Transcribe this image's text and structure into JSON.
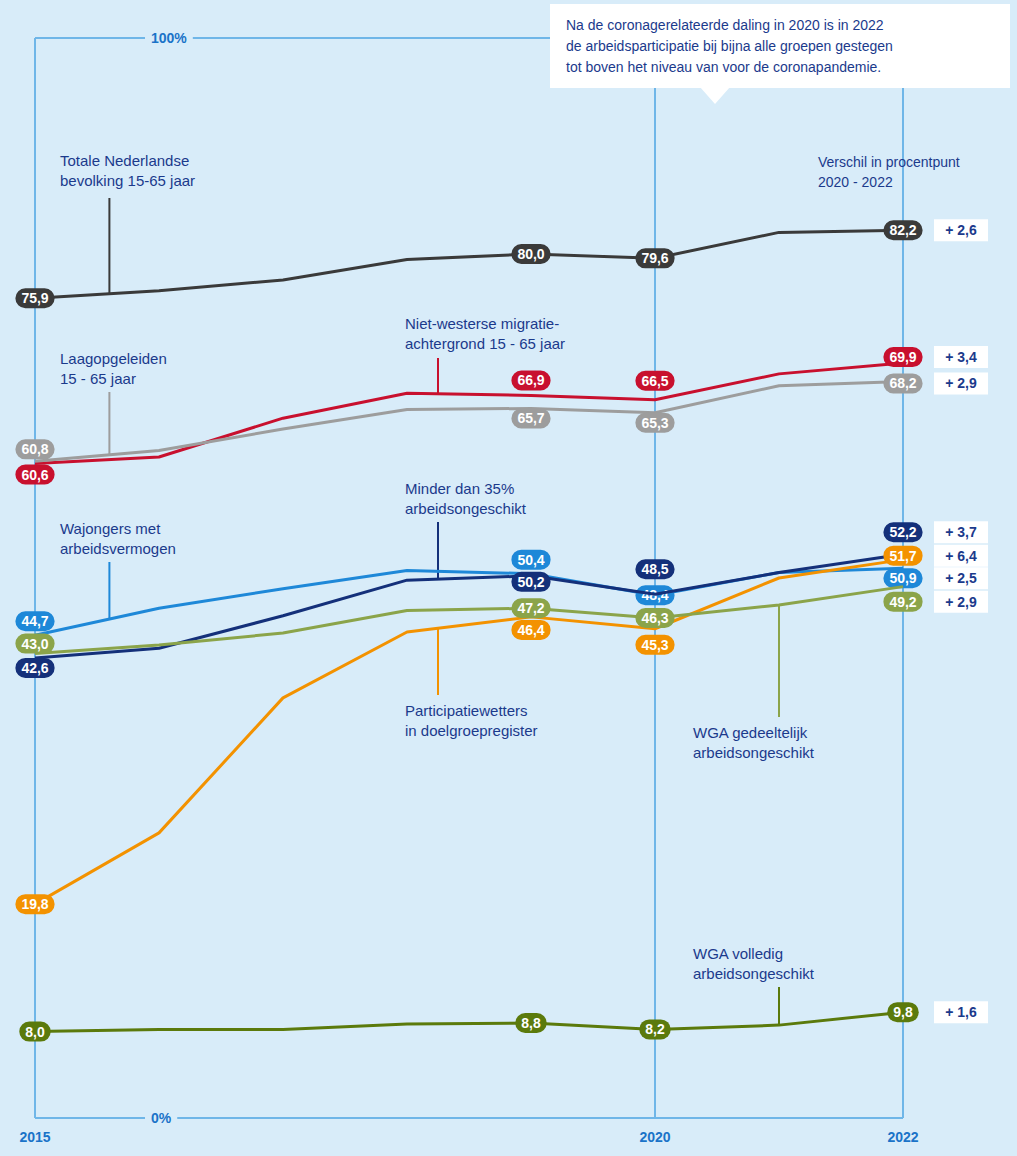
{
  "chart_data": {
    "type": "line",
    "annotation": "Na de coronagerelateerde daling in 2020 is in 2022\nde arbeidsparticipatie bij bijna alle groepen gestegen\ntot boven het niveau van voor de coronapandemie.",
    "change_title": "Verschil in procentpunt\n2020 - 2022",
    "categories": [
      "2015",
      null,
      null,
      null,
      null,
      "2020",
      null,
      "2022"
    ],
    "ylim": [
      0,
      100
    ],
    "yticks": [
      {
        "value": 0,
        "label": "0%"
      },
      {
        "value": 100,
        "label": "100%"
      }
    ],
    "grid": true,
    "data_labels": true,
    "series": [
      {
        "name": "Totale Nederlandse\nbevolking 15-65 jaar",
        "color": "#3a3a3a",
        "values": [
          75.9,
          76.6,
          77.6,
          79.5,
          80.0,
          79.6,
          82.0,
          82.2
        ],
        "value_labels": [
          "75,9",
          null,
          null,
          null,
          "80,0",
          "79,6",
          null,
          "82,2"
        ],
        "change_label": "+ 2,6"
      },
      {
        "name": "Niet-westerse migratie-\nachtergrond 15 - 65 jaar",
        "color": "#c8102e",
        "values": [
          60.6,
          61.2,
          64.8,
          67.1,
          66.9,
          66.5,
          68.9,
          69.9
        ],
        "value_labels": [
          "60,6",
          null,
          null,
          null,
          "66,9",
          "66,5",
          null,
          "69,9"
        ],
        "change_label": "+ 3,4"
      },
      {
        "name": "Laagopgeleiden\n15 - 65 jaar",
        "color": "#9d9d9d",
        "values": [
          60.8,
          61.8,
          63.8,
          65.6,
          65.7,
          65.3,
          67.8,
          68.2
        ],
        "value_labels": [
          "60,8",
          null,
          null,
          null,
          "65,7",
          "65,3",
          null,
          "68,2"
        ],
        "change_label": "+ 2,9"
      },
      {
        "name": "Wajongers met\narbeidsvermogen",
        "color": "#1e88d8",
        "values": [
          44.7,
          47.2,
          49.0,
          50.7,
          50.4,
          48.4,
          50.5,
          50.9
        ],
        "value_labels": [
          "44,7",
          null,
          null,
          null,
          "50,4",
          "48,4",
          null,
          "50,9"
        ],
        "change_label": "+ 2,5"
      },
      {
        "name": "Minder dan 35%\narbeidsongeschikt",
        "color": "#14307a",
        "values": [
          42.6,
          43.5,
          46.5,
          49.8,
          50.2,
          48.5,
          50.5,
          52.2
        ],
        "value_labels": [
          "42,6",
          null,
          null,
          null,
          "50,2",
          "48,5",
          null,
          "52,2"
        ],
        "change_label": "+ 3,7"
      },
      {
        "name": "Participatiewetters\nin doelgroepregister",
        "color": "#f39200",
        "values": [
          19.8,
          26.4,
          38.9,
          45.0,
          46.4,
          45.3,
          50.0,
          51.7
        ],
        "value_labels": [
          "19,8",
          null,
          null,
          null,
          "46,4",
          "45,3",
          null,
          "51,7"
        ],
        "change_label": "+ 6,4"
      },
      {
        "name": "WGA gedeeltelijk\narbeidsongeschikt",
        "color": "#8ba44a",
        "values": [
          43.0,
          43.8,
          44.9,
          47.0,
          47.2,
          46.3,
          47.5,
          49.2
        ],
        "value_labels": [
          "43,0",
          null,
          null,
          null,
          "47,2",
          "46,3",
          null,
          "49,2"
        ],
        "change_label": "+ 2,9"
      },
      {
        "name": "WGA volledig\narbeidsongeschikt",
        "color": "#5b7a0c",
        "values": [
          8.0,
          8.2,
          8.2,
          8.7,
          8.8,
          8.2,
          8.6,
          9.8
        ],
        "value_labels": [
          "8,0",
          null,
          null,
          null,
          "8,8",
          "8,2",
          null,
          "9,8"
        ],
        "change_label": "+ 1,6"
      }
    ]
  }
}
